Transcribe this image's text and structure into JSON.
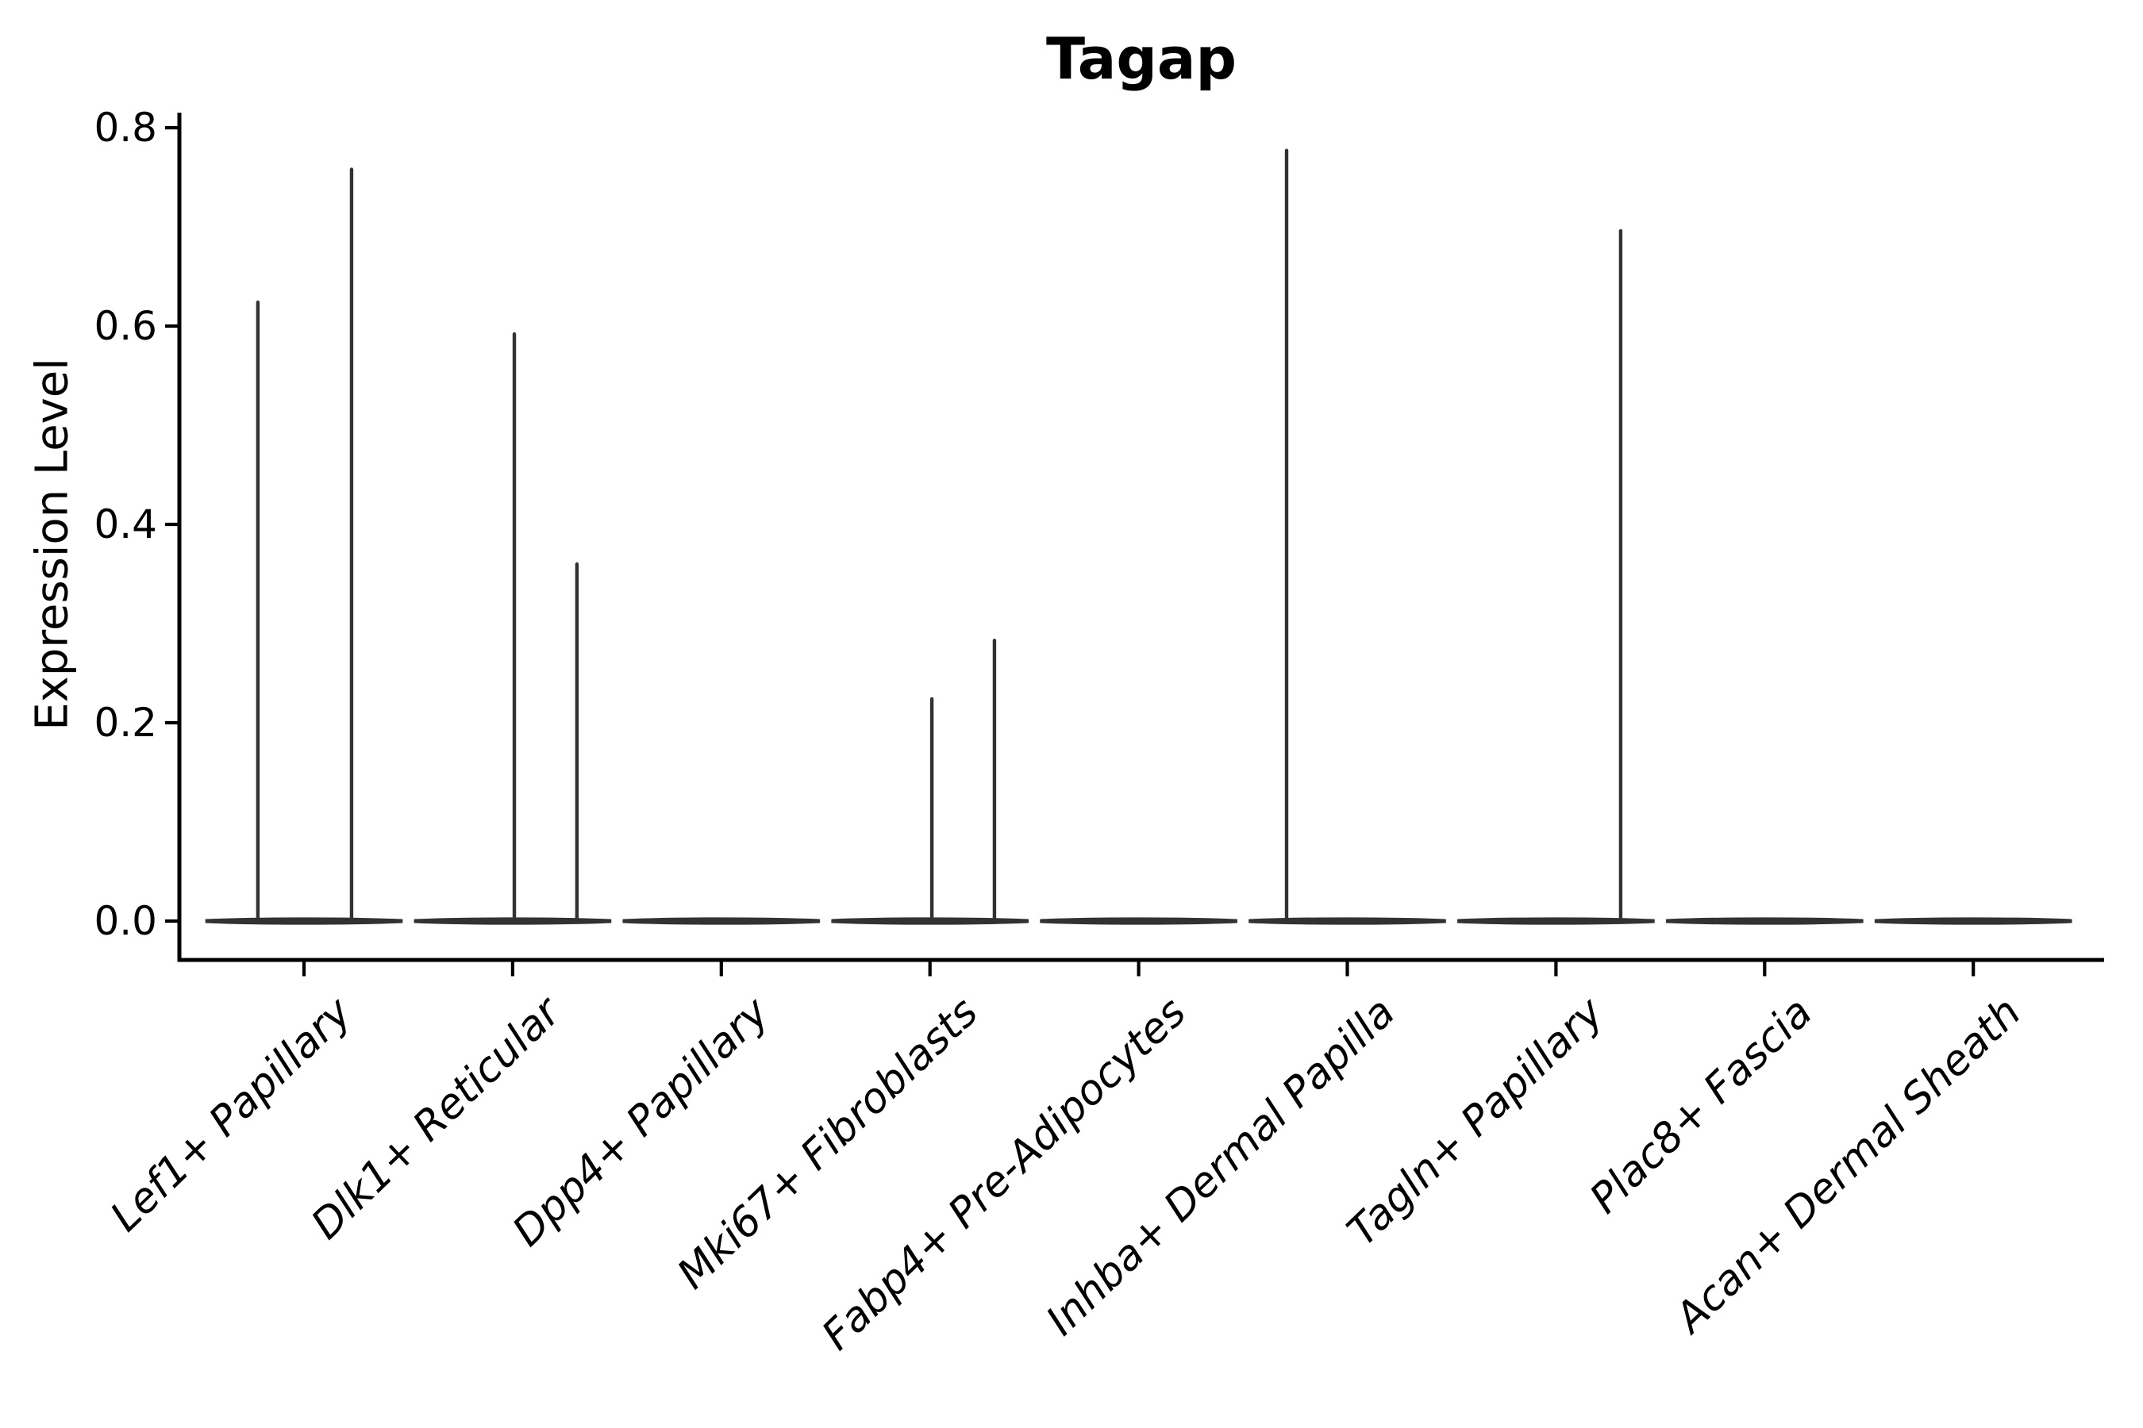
{
  "title": "Tagap",
  "axes": {
    "ylabel": "Expression Level",
    "ytick_labels": [
      "0.0",
      "0.2",
      "0.4",
      "0.6",
      "0.8"
    ],
    "ytick_values": [
      0.0,
      0.2,
      0.4,
      0.6,
      0.8
    ]
  },
  "style": {
    "violin_color": "#323232",
    "axis_color": "#000000",
    "background": "#ffffff"
  },
  "chart_data": {
    "type": "violin",
    "title": "Tagap",
    "xlabel": "",
    "ylabel": "Expression Level",
    "categories": [
      "Lef1+ Papillary",
      "Dlk1+ Reticular",
      "Dpp4+ Papillary",
      "Mki67+ Fibroblasts",
      "Fabp4+ Pre-Adipocytes",
      "Inhba+ Dermal Papilla",
      "Tagln+ Papillary",
      "Plac8+ Fascia",
      "Acan+ Dermal Sheath"
    ],
    "description": "Each category shows a flattened violin at expression 0 (most cells non-expressing) plus thin density spikes reaching the maximum expression of rare expressing cells. Spike offset is in category-width units from the category center.",
    "violins": [
      {
        "category": "Lef1+ Papillary",
        "base_halfwidth": 0.47,
        "median": 0.0,
        "spikes": [
          {
            "offset": -0.221,
            "value": 0.624
          },
          {
            "offset": 0.228,
            "value": 0.758
          }
        ]
      },
      {
        "category": "Dlk1+ Reticular",
        "base_halfwidth": 0.47,
        "median": 0.0,
        "spikes": [
          {
            "offset": 0.008,
            "value": 0.592
          },
          {
            "offset": 0.308,
            "value": 0.36
          }
        ]
      },
      {
        "category": "Dpp4+ Papillary",
        "base_halfwidth": 0.47,
        "median": 0.0,
        "spikes": []
      },
      {
        "category": "Mki67+ Fibroblasts",
        "base_halfwidth": 0.47,
        "median": 0.0,
        "spikes": [
          {
            "offset": 0.009,
            "value": 0.224
          },
          {
            "offset": 0.309,
            "value": 0.283
          }
        ]
      },
      {
        "category": "Fabp4+ Pre-Adipocytes",
        "base_halfwidth": 0.47,
        "median": 0.0,
        "spikes": []
      },
      {
        "category": "Inhba+ Dermal Papilla",
        "base_halfwidth": 0.47,
        "median": 0.0,
        "spikes": [
          {
            "offset": -0.291,
            "value": 0.777
          }
        ]
      },
      {
        "category": "Tagln+ Papillary",
        "base_halfwidth": 0.47,
        "median": 0.0,
        "spikes": [
          {
            "offset": 0.31,
            "value": 0.696
          }
        ]
      },
      {
        "category": "Plac8+ Fascia",
        "base_halfwidth": 0.47,
        "median": 0.0,
        "spikes": []
      },
      {
        "category": "Acan+ Dermal Sheath",
        "base_halfwidth": 0.47,
        "median": 0.0,
        "spikes": []
      }
    ],
    "yticks": [
      0.0,
      0.2,
      0.4,
      0.6,
      0.8
    ],
    "ylim": [
      -0.04,
      0.82
    ],
    "xlim": [
      -0.6,
      8.63
    ],
    "grid": false,
    "legend_position": "none",
    "xtick_rotation_deg": 45,
    "xtick_style": "italic",
    "spines": {
      "left": true,
      "bottom": true,
      "top": false,
      "right": false
    }
  }
}
